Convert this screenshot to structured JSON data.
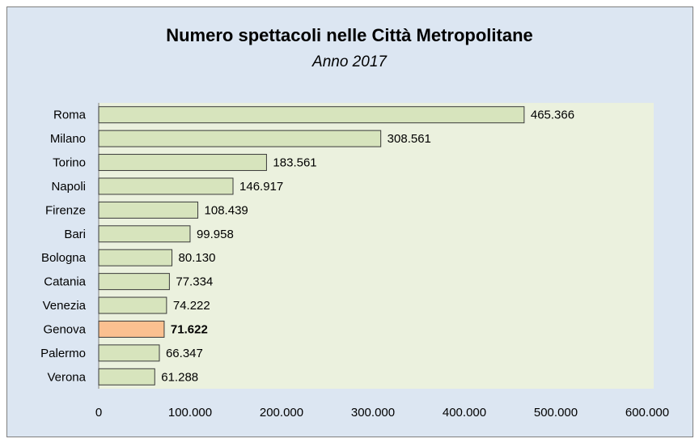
{
  "chart_data": {
    "type": "bar",
    "orientation": "horizontal",
    "title": "Numero spettacoli nelle Città Metropolitane",
    "subtitle": "Anno 2017",
    "categories": [
      "Roma",
      "Milano",
      "Torino",
      "Napoli",
      "Firenze",
      "Bari",
      "Bologna",
      "Catania",
      "Venezia",
      "Genova",
      "Palermo",
      "Verona"
    ],
    "values": [
      465366,
      308561,
      183561,
      146917,
      108439,
      99958,
      80130,
      77334,
      74222,
      71622,
      66347,
      61288
    ],
    "value_labels": [
      "465.366",
      "308.561",
      "183.561",
      "146.917",
      "108.439",
      "99.958",
      "80.130",
      "77.334",
      "74.222",
      "71.622",
      "66.347",
      "61.288"
    ],
    "color": "#d7e4bd",
    "highlight_color": "#fac090",
    "colors": [
      "#d7e4bd",
      "#d7e4bd",
      "#d7e4bd",
      "#d7e4bd",
      "#d7e4bd",
      "#d7e4bd",
      "#d7e4bd",
      "#d7e4bd",
      "#d7e4bd",
      "#fac090",
      "#d7e4bd",
      "#d7e4bd"
    ],
    "xlim": [
      0,
      600000
    ],
    "xticks": [
      0,
      {
        "value": 100000,
        "label": "100.000"
      },
      {
        "value": 200000,
        "label": "200.000"
      },
      {
        "value": 300000,
        "label": "300.000"
      },
      {
        "value": 400000,
        "label": "400.000"
      },
      {
        "value": 500000,
        "label": "500.000"
      },
      {
        "value": 600000,
        "label": "600.000"
      }
    ],
    "grid": false
  }
}
